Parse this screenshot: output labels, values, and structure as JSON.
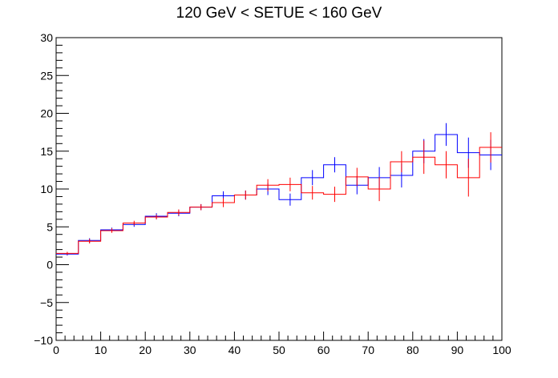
{
  "chart_data": {
    "type": "line",
    "title": "120 GeV < SETUE < 160 GeV",
    "xlabel": "",
    "ylabel": "",
    "xlim": [
      0,
      100
    ],
    "ylim": [
      -10,
      30
    ],
    "x_ticks": [
      "0",
      "10",
      "20",
      "30",
      "40",
      "50",
      "60",
      "70",
      "80",
      "90",
      "100"
    ],
    "y_ticks": [
      "−10",
      "−5",
      "0",
      "5",
      "10",
      "15",
      "20",
      "25",
      "30"
    ],
    "grid": false,
    "bin_edges": [
      0,
      5,
      10,
      15,
      20,
      25,
      30,
      35,
      40,
      45,
      50,
      55,
      60,
      65,
      70,
      75,
      80,
      85,
      90,
      95,
      100
    ],
    "series": [
      {
        "color": "#0000ff",
        "values": [
          1.4,
          3.2,
          4.6,
          5.3,
          6.4,
          6.8,
          7.6,
          9.1,
          9.2,
          10.0,
          8.6,
          11.5,
          13.2,
          10.5,
          11.5,
          11.8,
          15.0,
          17.2,
          14.8,
          14.5
        ],
        "errors": [
          0.2,
          0.3,
          0.3,
          0.3,
          0.4,
          0.4,
          0.4,
          0.6,
          0.6,
          0.8,
          0.8,
          1.0,
          1.0,
          1.2,
          1.4,
          1.6,
          1.6,
          1.5,
          2.0,
          2.0
        ]
      },
      {
        "color": "#ff0000",
        "values": [
          1.5,
          3.1,
          4.5,
          5.5,
          6.3,
          6.9,
          7.6,
          8.2,
          9.2,
          10.5,
          10.6,
          9.5,
          9.3,
          11.6,
          10.0,
          13.6,
          14.2,
          13.2,
          11.5,
          15.5
        ],
        "errors": [
          0.2,
          0.3,
          0.3,
          0.3,
          0.3,
          0.4,
          0.4,
          0.6,
          0.6,
          0.8,
          0.9,
          0.9,
          1.0,
          1.2,
          1.6,
          1.4,
          2.2,
          1.8,
          2.5,
          2.0
        ]
      }
    ]
  }
}
